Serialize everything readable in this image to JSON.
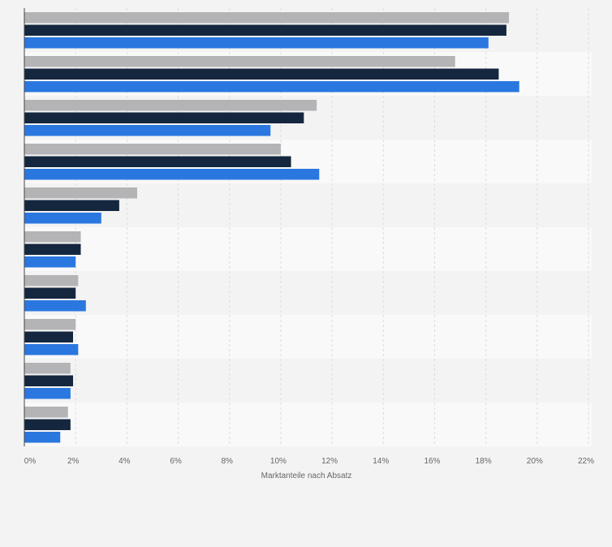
{
  "chart_data": {
    "type": "bar",
    "orientation": "horizontal",
    "categories": [
      "",
      "",
      "",
      "",
      "",
      "",
      "",
      "",
      "",
      ""
    ],
    "series": [
      {
        "color": "#b4b4b6",
        "values": [
          18.9,
          16.8,
          11.4,
          10.0,
          4.4,
          2.2,
          2.1,
          2.0,
          1.8,
          1.7
        ]
      },
      {
        "color": "#14273e",
        "values": [
          18.8,
          18.5,
          10.9,
          10.4,
          3.7,
          2.2,
          2.0,
          1.9,
          1.9,
          1.8
        ]
      },
      {
        "color": "#2a77e0",
        "values": [
          18.1,
          19.3,
          9.6,
          11.5,
          3.0,
          2.0,
          2.4,
          2.1,
          1.8,
          1.4
        ]
      }
    ],
    "xlim": [
      0,
      22
    ],
    "x_ticks": [
      "0%",
      "2%",
      "4%",
      "6%",
      "8%",
      "10%",
      "12%",
      "14%",
      "16%",
      "18%",
      "20%",
      "22%"
    ],
    "xlabel": "Marktanteile nach Absatz",
    "grid": true,
    "legend": "none"
  }
}
